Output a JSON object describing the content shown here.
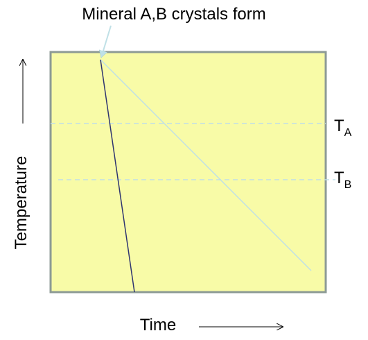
{
  "annotation": {
    "text": "Mineral A,B crystals form"
  },
  "axes": {
    "y_label": "Temperature",
    "x_label": "Time"
  },
  "levels": {
    "a": {
      "symbol": "T",
      "subscript": "A"
    },
    "b": {
      "symbol": "T",
      "subscript": "B"
    }
  },
  "colors": {
    "plot_background": "#f8fba7",
    "plot_border": "#8c9a95",
    "steep_cooling_line": "#2e3470",
    "gradual_cooling_line": "#bfe0e6",
    "level_lines": "#bfe0e6",
    "arrow": "#000000"
  }
}
